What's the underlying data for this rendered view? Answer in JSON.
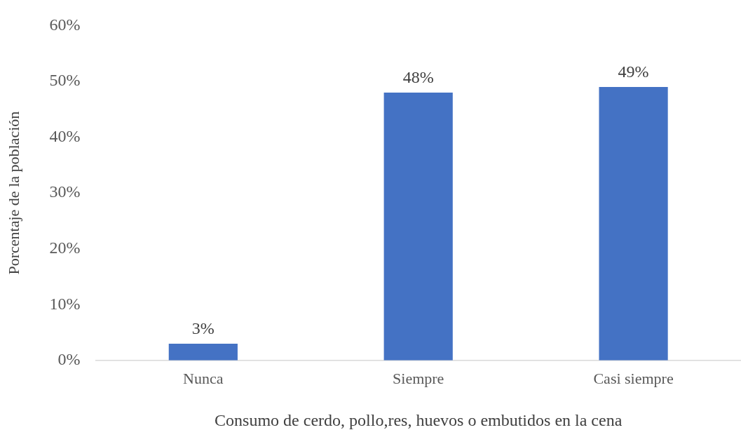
{
  "chart_data": {
    "type": "bar",
    "xlabel": "Consumo de cerdo, pollo,res, huevos o embutidos en la cena",
    "ylabel": "Porcentaje de la población",
    "categories": [
      "Nunca",
      "Siempre",
      "Casi siempre"
    ],
    "values": [
      3,
      48,
      49
    ],
    "color": "#4472c4",
    "ylim": [
      0,
      60
    ],
    "yticks": [
      {
        "value": 0,
        "label": "0%"
      },
      {
        "value": 10,
        "label": "10%"
      },
      {
        "value": 20,
        "label": "20%"
      },
      {
        "value": 30,
        "label": "30%"
      },
      {
        "value": 40,
        "label": "40%"
      },
      {
        "value": 50,
        "label": "50%"
      },
      {
        "value": 60,
        "label": "60%"
      }
    ],
    "value_labels": [
      "3%",
      "48%",
      "49%"
    ],
    "grid": false,
    "legend": false
  }
}
